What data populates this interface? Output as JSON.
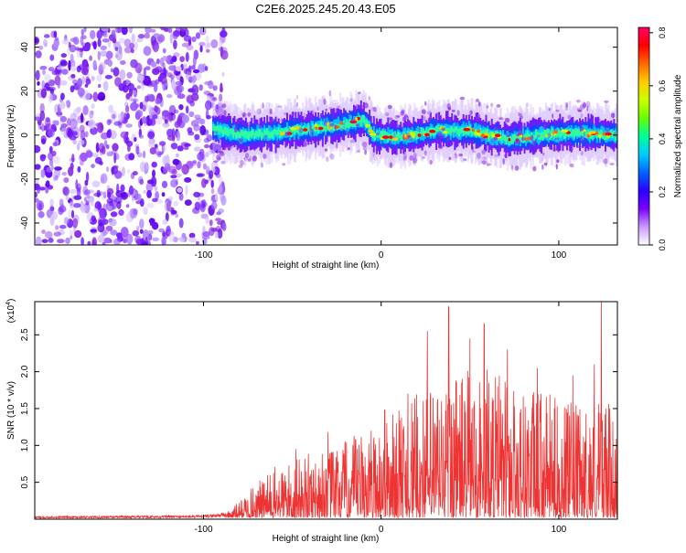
{
  "title": "C2E6.2025.245.20.43.E05",
  "spectrogram": {
    "xlabel": "Height of straight line (km)",
    "ylabel": "Frequency (Hz)",
    "xlim": [
      -195,
      133
    ],
    "ylim": [
      -50,
      49
    ],
    "x_ticks": [
      -100,
      0,
      100
    ],
    "y_ticks": [
      -40,
      -20,
      0,
      20,
      40
    ],
    "x_tick_labels": [
      "-100",
      "0",
      "100"
    ],
    "y_tick_labels": [
      "-40",
      "-20",
      "0",
      "20",
      "40"
    ],
    "noise_region_km": [
      -195,
      -88
    ],
    "signal_band": [
      {
        "x": -95,
        "f": 3
      },
      {
        "x": -80,
        "f": 0
      },
      {
        "x": -60,
        "f": 1
      },
      {
        "x": -40,
        "f": 3
      },
      {
        "x": -20,
        "f": 5
      },
      {
        "x": -10,
        "f": 7
      },
      {
        "x": -5,
        "f": 0
      },
      {
        "x": 10,
        "f": -1
      },
      {
        "x": 30,
        "f": 2
      },
      {
        "x": 50,
        "f": 2
      },
      {
        "x": 70,
        "f": -2
      },
      {
        "x": 90,
        "f": 0
      },
      {
        "x": 110,
        "f": 1
      },
      {
        "x": 133,
        "f": 0
      }
    ]
  },
  "colorbar": {
    "label": "Normalized spectral amplitude",
    "range": [
      0,
      0.82
    ],
    "ticks": [
      0,
      0.2,
      0.4,
      0.6,
      0.8
    ],
    "tick_labels": [
      "0.0",
      "0.2",
      "0.4",
      "0.6",
      "0.8"
    ],
    "colors": [
      "#ffffff",
      "#cc99ff",
      "#7a00ff",
      "#2a00ff",
      "#0066ff",
      "#00ccff",
      "#00ff99",
      "#66ff00",
      "#ccff00",
      "#ffcc00",
      "#ff6600",
      "#ff0000",
      "#ff0066"
    ]
  },
  "chart_data": [
    {
      "type": "heatmap",
      "title": "C2E6.2025.245.20.43.E05",
      "xlabel": "Height of straight line (km)",
      "ylabel": "Frequency (Hz)",
      "xlim": [
        -195,
        133
      ],
      "ylim": [
        -50,
        49
      ],
      "zlabel": "Normalized spectral amplitude",
      "zlim": [
        0,
        0.82
      ]
    },
    {
      "type": "line",
      "xlabel": "Height of straight line (km)",
      "ylabel": "SNR (10 * v/v)",
      "y_multiplier": "(x10",
      "y_multiplier_exp": "4",
      "xlim": [
        -195,
        133
      ],
      "ylim": [
        0,
        2.95
      ],
      "x_ticks": [
        -100,
        0,
        100
      ],
      "x_tick_labels": [
        "-100",
        "0",
        "100"
      ],
      "y_ticks": [
        0.5,
        1.0,
        1.5,
        2.0,
        2.5
      ],
      "y_tick_labels": [
        "0.5",
        "1.0",
        "1.5",
        "2.0",
        "2.5"
      ],
      "color": "#ee3333",
      "envelope": [
        {
          "x": -195,
          "y": 0.03
        },
        {
          "x": -100,
          "y": 0.04
        },
        {
          "x": -85,
          "y": 0.08
        },
        {
          "x": -72,
          "y": 0.35
        },
        {
          "x": -60,
          "y": 0.55
        },
        {
          "x": -40,
          "y": 0.7
        },
        {
          "x": -20,
          "y": 0.85
        },
        {
          "x": 0,
          "y": 1.05
        },
        {
          "x": 20,
          "y": 1.35
        },
        {
          "x": 40,
          "y": 1.6
        },
        {
          "x": 60,
          "y": 1.65
        },
        {
          "x": 80,
          "y": 1.45
        },
        {
          "x": 100,
          "y": 1.3
        },
        {
          "x": 115,
          "y": 1.2
        },
        {
          "x": 125,
          "y": 1.4
        },
        {
          "x": 133,
          "y": 1.0
        }
      ],
      "peaks": [
        {
          "x": -48,
          "y": 0.95
        },
        {
          "x": -30,
          "y": 1.18
        },
        {
          "x": 2,
          "y": 1.48
        },
        {
          "x": 15,
          "y": 1.7
        },
        {
          "x": 26,
          "y": 2.55
        },
        {
          "x": 38,
          "y": 2.88
        },
        {
          "x": 50,
          "y": 2.45
        },
        {
          "x": 58,
          "y": 2.65
        },
        {
          "x": 71,
          "y": 2.3
        },
        {
          "x": 88,
          "y": 2.05
        },
        {
          "x": 108,
          "y": 1.95
        },
        {
          "x": 120,
          "y": 2.1
        },
        {
          "x": 124,
          "y": 2.95
        }
      ]
    }
  ]
}
